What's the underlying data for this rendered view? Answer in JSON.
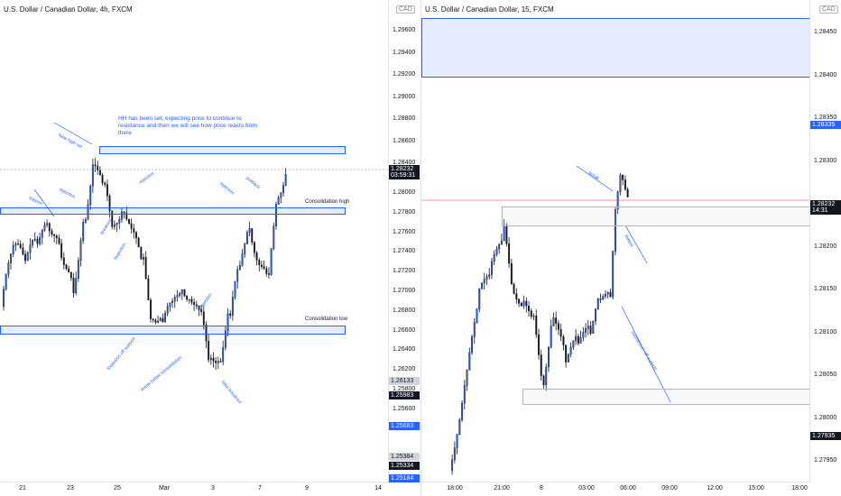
{
  "left": {
    "title": "U.S. Dollar / Canadian Dollar, 4h, FXCM",
    "currency": "CAD",
    "price_ticks": [
      "1.29600",
      "1.29400",
      "1.29200",
      "1.29000",
      "1.28800",
      "1.28600",
      "1.28400",
      "1.28000",
      "1.27800",
      "1.27600",
      "1.27400",
      "1.27200",
      "1.27000",
      "1.26800",
      "1.26600",
      "1.26400",
      "1.26200",
      "1.25800",
      "1.25600"
    ],
    "price_tags": [
      {
        "value": "1.28232",
        "sub": "03:59:31",
        "color": "#131722"
      },
      {
        "value": "1.26133",
        "sub": "",
        "color": "#d1d4dc"
      },
      {
        "value": "1.25983",
        "sub": "",
        "color": "#131722"
      },
      {
        "value": "1.25683",
        "sub": "",
        "color": "#2962ff"
      },
      {
        "value": "1.25384",
        "sub": "",
        "color": "#d1d4dc"
      },
      {
        "value": "1.25334",
        "sub": "",
        "color": "#131722"
      },
      {
        "value": "1.25184",
        "sub": "",
        "color": "#2962ff"
      }
    ],
    "time_ticks": [
      "21",
      "23",
      "25",
      "Mar",
      "3",
      "7",
      "9",
      "14"
    ],
    "note": "HH has been set, expecting price to continue to resistance and then we will see how price reacts from there",
    "zone_labels": {
      "high": "Consolidation high",
      "low": "Consolidation low"
    },
    "annotations": [
      "New high set",
      "rejection",
      "support",
      "rejection",
      "Bounce",
      "rejection",
      "rejection",
      "pullback",
      "Rejection off support",
      "break below consolidation",
      "false breakout",
      "breakout",
      "Rejection",
      "Rejection",
      "rejection"
    ]
  },
  "right": {
    "title": "U.S. Dollar / Canadian Dollar, 15, FXCM",
    "currency": "CAD",
    "price_ticks": [
      "1.28450",
      "1.28400",
      "1.28350",
      "1.28300",
      "1.28250",
      "1.28200",
      "1.28150",
      "1.28100",
      "1.28050",
      "1.28000",
      "1.27950",
      "1.27900"
    ],
    "price_tags": [
      {
        "value": "1.28335",
        "sub": "",
        "color": "#2962ff"
      },
      {
        "value": "1.28232",
        "sub": "14:31",
        "color": "#131722"
      },
      {
        "value": "1.27935",
        "sub": "",
        "color": "#131722"
      }
    ],
    "time_ticks": [
      "18:00",
      "21:00",
      "8",
      "03:00",
      "06:00",
      "09:00",
      "12:00",
      "15:00",
      "18:00"
    ],
    "annotations": [
      "Break",
      "Retest",
      "momentum off support"
    ]
  },
  "colors": {
    "up": "#2962ff",
    "down": "#131722",
    "zone": "#2962ff"
  }
}
